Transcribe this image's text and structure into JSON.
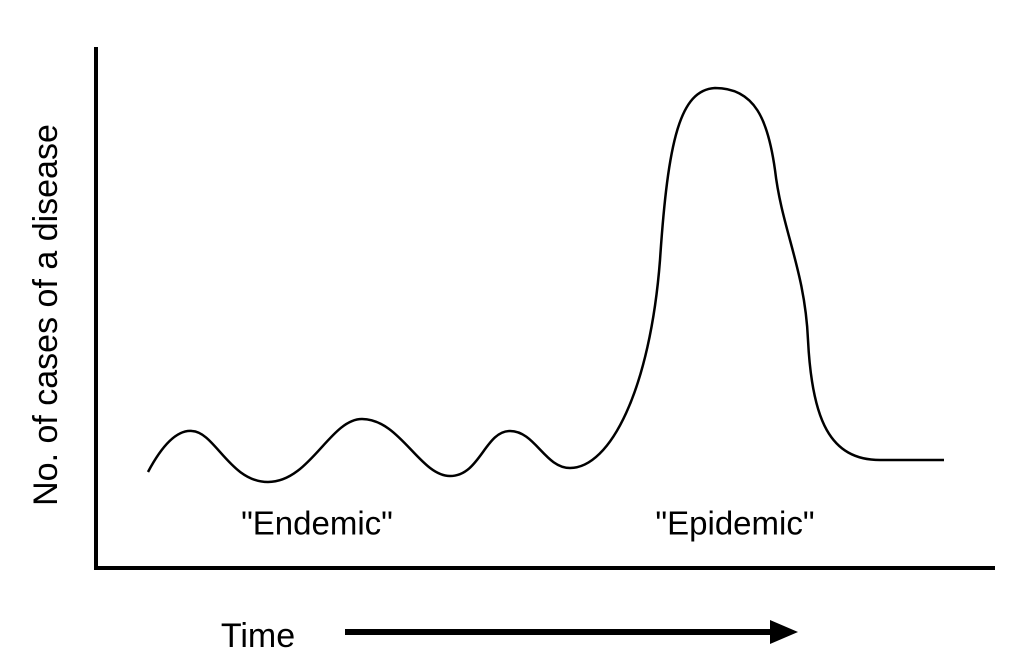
{
  "diagram": {
    "y_axis_label": "No. of cases of a disease",
    "regions": [
      "\"Endemic\"",
      "\"Epidemic\""
    ],
    "x_axis_label": "Time"
  }
}
